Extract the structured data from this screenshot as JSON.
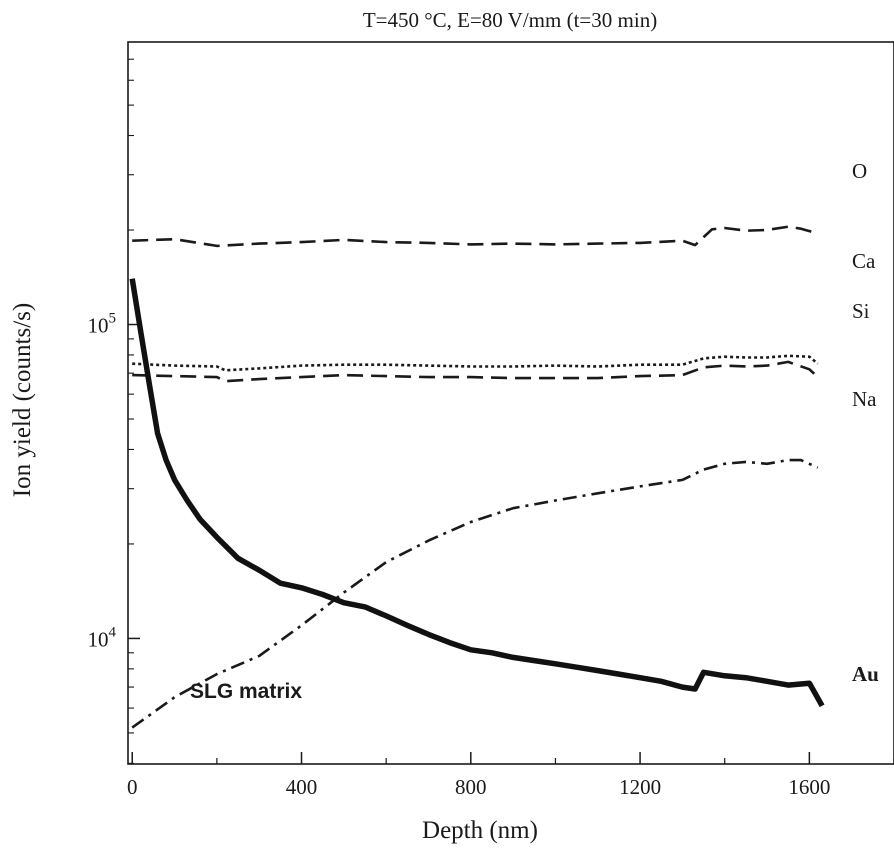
{
  "chart_data": {
    "type": "line",
    "title": "T=450 °C, E=80 V/mm (t=30 min)",
    "xlabel": "Depth (nm)",
    "ylabel": "Ion yield (counts/s)",
    "xlim": [
      -10,
      1800
    ],
    "ylim_log10": [
      3.6,
      5.9
    ],
    "y_scale": "log",
    "x_ticks": [
      0,
      400,
      800,
      1200,
      1600
    ],
    "x_tick_labels": [
      "0",
      "400",
      "800",
      "1200",
      "1600"
    ],
    "y_ticks": [
      10000,
      100000
    ],
    "y_tick_labels": [
      {
        "base": "10",
        "exp": "4"
      },
      {
        "base": "10",
        "exp": "5"
      }
    ],
    "grid": false,
    "annotation": "SLG matrix",
    "series": [
      {
        "name": "O",
        "style": "dashed",
        "color": "#1a1a1a",
        "x": [
          0,
          100,
          200,
          300,
          400,
          500,
          600,
          700,
          800,
          900,
          1000,
          1100,
          1200,
          1300,
          1330,
          1370,
          1400,
          1450,
          1500,
          1550,
          1580,
          1620
        ],
        "y": [
          185000,
          187000,
          178000,
          181000,
          183000,
          186000,
          183000,
          182000,
          180000,
          181000,
          180000,
          181000,
          182000,
          185000,
          179000,
          201000,
          203000,
          199000,
          200000,
          205000,
          202000,
          195000
        ]
      },
      {
        "name": "Ca",
        "style": "dotted",
        "color": "#1a1a1a",
        "x": [
          0,
          100,
          200,
          220,
          300,
          400,
          500,
          600,
          700,
          800,
          900,
          1000,
          1100,
          1200,
          1300,
          1350,
          1400,
          1450,
          1500,
          1550,
          1600,
          1620
        ],
        "y": [
          75000,
          74000,
          73500,
          71500,
          72500,
          74000,
          74500,
          74500,
          74000,
          73500,
          73500,
          74000,
          73500,
          74500,
          74500,
          78000,
          79000,
          78500,
          78500,
          79500,
          79000,
          75000
        ]
      },
      {
        "name": "Si",
        "style": "dashed",
        "color": "#1a1a1a",
        "x": [
          0,
          100,
          200,
          220,
          300,
          400,
          500,
          600,
          700,
          800,
          900,
          1000,
          1100,
          1200,
          1300,
          1350,
          1400,
          1450,
          1500,
          1550,
          1600,
          1620
        ],
        "y": [
          69000,
          68500,
          68000,
          66000,
          67000,
          68000,
          69000,
          68500,
          68000,
          68000,
          67500,
          67500,
          67500,
          68500,
          69000,
          73000,
          74000,
          73500,
          74000,
          76000,
          72000,
          68000
        ]
      },
      {
        "name": "Na",
        "style": "dash-dot",
        "color": "#1a1a1a",
        "x": [
          0,
          100,
          200,
          300,
          400,
          500,
          600,
          700,
          800,
          900,
          1000,
          1100,
          1200,
          1300,
          1350,
          1400,
          1450,
          1500,
          1550,
          1580,
          1620
        ],
        "y": [
          5200,
          6500,
          7700,
          8800,
          11000,
          14000,
          17500,
          20500,
          23500,
          26000,
          27500,
          29000,
          30500,
          32000,
          34500,
          36000,
          36500,
          36000,
          37000,
          37000,
          35000
        ]
      },
      {
        "name": "Au",
        "style": "solid-thick",
        "color": "#111111",
        "x": [
          0,
          20,
          40,
          60,
          80,
          100,
          130,
          160,
          200,
          250,
          300,
          350,
          400,
          450,
          500,
          550,
          600,
          650,
          700,
          750,
          800,
          850,
          900,
          950,
          1000,
          1050,
          1100,
          1150,
          1200,
          1250,
          1300,
          1330,
          1350,
          1400,
          1450,
          1500,
          1550,
          1600,
          1630
        ],
        "y": [
          140000,
          95000,
          65000,
          45000,
          37000,
          32000,
          27500,
          24000,
          21000,
          18000,
          16500,
          15000,
          14500,
          13800,
          13000,
          12600,
          11800,
          11000,
          10300,
          9700,
          9200,
          9000,
          8700,
          8500,
          8300,
          8100,
          7900,
          7700,
          7500,
          7300,
          7000,
          6900,
          7800,
          7600,
          7500,
          7300,
          7100,
          7200,
          6100
        ]
      }
    ]
  }
}
